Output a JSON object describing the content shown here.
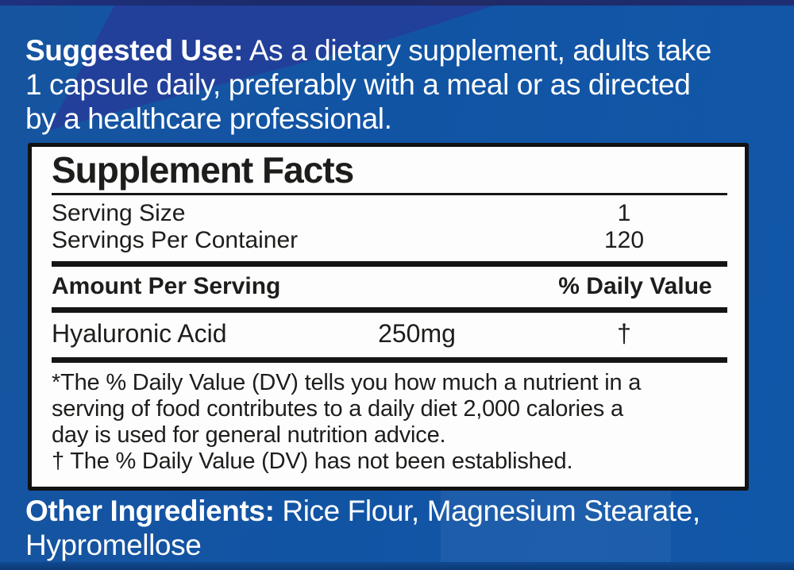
{
  "colors": {
    "background_blue": "#1254a4",
    "diagonal_band_indigo": "#243f99",
    "top_strip_navy": "#1c2a6a",
    "bottom_strip_blue": "#0c3a74",
    "panel_background": "#fdfdfd",
    "panel_border": "#121212",
    "panel_text": "#1d1d1b",
    "label_text": "#ffffff"
  },
  "suggested_use": {
    "label": "Suggested Use:",
    "line1_rest": " As a dietary supplement, adults take",
    "line2": "1 capsule daily, preferably with a meal or as directed",
    "line3": "by a healthcare professional."
  },
  "supplement_facts": {
    "title": "Supplement Facts",
    "serving_size_label": "Serving Size",
    "serving_size_value": "1",
    "servings_per_container_label": "Servings Per Container",
    "servings_per_container_value": "120",
    "amount_per_serving_label": "Amount Per Serving",
    "daily_value_label": "% Daily Value",
    "ingredients": [
      {
        "name": "Hyaluronic Acid",
        "amount": "250mg",
        "daily_value": "†"
      }
    ],
    "footnote_line1": "*The % Daily Value (DV) tells you how much a nutrient in a",
    "footnote_line2": "serving of food contributes to a daily diet 2,000 calories a",
    "footnote_line3": "day is used for general nutrition advice.",
    "footnote_line4": "† The % Daily Value (DV) has not been established."
  },
  "other_ingredients": {
    "label": "Other Ingredients:",
    "line1_rest": " Rice Flour, Magnesium Stearate,",
    "line2": "Hypromellose"
  }
}
